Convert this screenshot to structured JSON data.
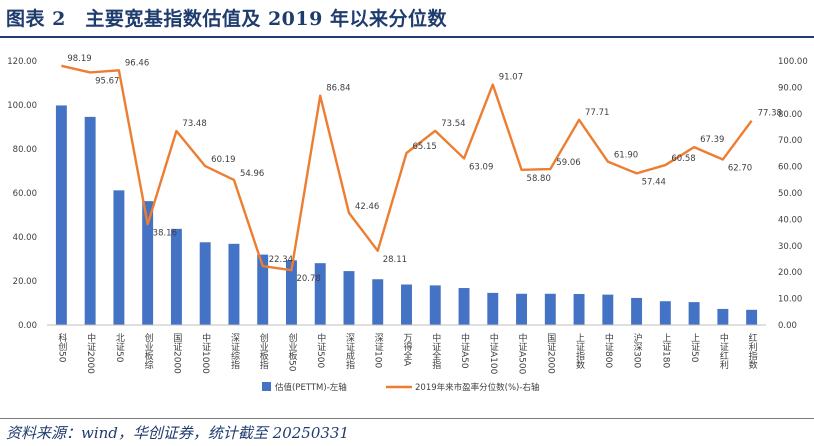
{
  "header": {
    "title": "图表 2　主要宽基指数估值及 2019 年以来分位数"
  },
  "footer": {
    "source": "资料来源：wind，华创证券，统计截至 20250331"
  },
  "chart_data": {
    "type": "bar",
    "categories": [
      "科创50",
      "中证2000",
      "北证50",
      "创业板综",
      "国证2000",
      "中证1000",
      "深证综指",
      "创业板指",
      "创业板50",
      "中证500",
      "深证成指",
      "深证100",
      "万得全A",
      "中证全指",
      "中证A50",
      "中证A100",
      "中证A500",
      "国证2000",
      "上证指数",
      "中证800",
      "沪深300",
      "上证180",
      "上证50",
      "中证红利",
      "红利指数"
    ],
    "series": [
      {
        "name": "估值(PETTM)-左轴",
        "type": "bar",
        "axis": "left",
        "color": "#4472c4",
        "values": [
          99.8,
          94.6,
          61.2,
          56.3,
          43.7,
          37.6,
          36.9,
          32.0,
          29.4,
          28.1,
          24.5,
          20.8,
          18.4,
          18.0,
          16.8,
          14.6,
          14.2,
          14.2,
          14.1,
          13.8,
          12.3,
          10.8,
          10.4,
          7.3,
          6.9
        ]
      },
      {
        "name": "2019年来市盈率分位数(%)-右轴",
        "type": "line",
        "axis": "right",
        "color": "#ed7d31",
        "values": [
          98.19,
          95.67,
          96.46,
          38.16,
          73.48,
          60.19,
          54.96,
          22.34,
          20.78,
          86.84,
          42.46,
          28.11,
          65.15,
          73.54,
          63.09,
          91.07,
          58.8,
          59.06,
          77.71,
          61.9,
          57.44,
          60.58,
          67.39,
          62.7,
          77.38
        ],
        "labels": [
          "98.19",
          "95.67",
          "96.46",
          "38.16",
          "73.48",
          "60.19",
          "54.96",
          "22.34",
          "20.78",
          "86.84",
          "42.46",
          "28.11",
          "65.15",
          "73.54",
          "63.09",
          "91.07",
          "58.80",
          "59.06",
          "77.71",
          "61.90",
          "57.44",
          "60.58",
          "67.39",
          "62.70",
          "77.38"
        ]
      }
    ],
    "y_left": {
      "min": 0,
      "max": 120,
      "step": 20,
      "tick_labels": [
        "0.00",
        "20.00",
        "40.00",
        "60.00",
        "80.00",
        "100.00",
        "120.00"
      ]
    },
    "y_right": {
      "min": 0,
      "max": 100,
      "step": 10,
      "tick_labels": [
        "0.00",
        "10.00",
        "20.00",
        "30.00",
        "40.00",
        "50.00",
        "60.00",
        "70.00",
        "80.00",
        "90.00",
        "100.00"
      ]
    },
    "grid": false,
    "legend": {
      "position": "bottom"
    }
  }
}
